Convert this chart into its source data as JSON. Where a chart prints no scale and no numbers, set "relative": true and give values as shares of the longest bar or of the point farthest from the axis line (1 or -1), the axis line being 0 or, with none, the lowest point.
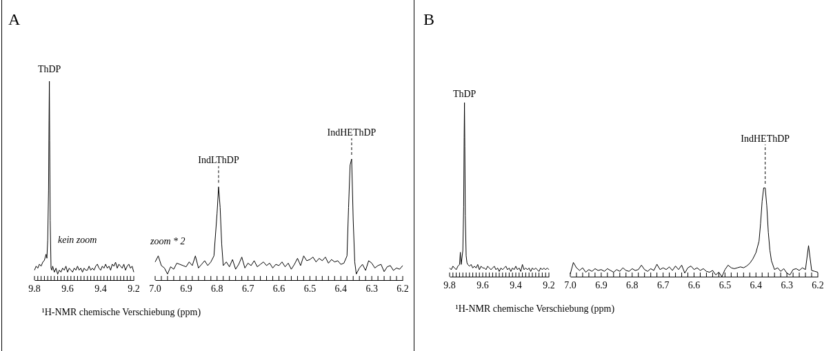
{
  "chart_data": [
    {
      "type": "line",
      "title": "A",
      "xlabel": "¹H-NMR chemische Verschiebung (ppm)",
      "relative": true,
      "xlim": [
        9.8,
        9.2
      ],
      "xticks": [
        9.8,
        {
          "value": 9.78,
          "label": null
        },
        {
          "value": 9.76,
          "label": null
        },
        {
          "value": 9.74,
          "label": null
        },
        {
          "value": 9.72,
          "label": null
        },
        {
          "value": 9.7,
          "label": null
        },
        {
          "value": 9.68,
          "label": null
        },
        {
          "value": 9.66,
          "label": null
        },
        {
          "value": 9.64,
          "label": null
        },
        {
          "value": 9.62,
          "label": null
        },
        9.6,
        {
          "value": 9.58,
          "label": null
        },
        {
          "value": 9.56,
          "label": null
        },
        {
          "value": 9.54,
          "label": null
        },
        {
          "value": 9.52,
          "label": null
        },
        {
          "value": 9.5,
          "label": null
        },
        {
          "value": 9.48,
          "label": null
        },
        {
          "value": 9.46,
          "label": null
        },
        {
          "value": 9.44,
          "label": null
        },
        {
          "value": 9.42,
          "label": null
        },
        9.4,
        {
          "value": 9.38,
          "label": null
        },
        {
          "value": 9.36,
          "label": null
        },
        {
          "value": 9.34,
          "label": null
        },
        {
          "value": 9.32,
          "label": null
        },
        {
          "value": 9.3,
          "label": null
        },
        {
          "value": 9.28,
          "label": null
        },
        {
          "value": 9.26,
          "label": null
        },
        {
          "value": 9.24,
          "label": null
        },
        {
          "value": 9.22,
          "label": null
        },
        9.2
      ],
      "x": [
        9.8,
        9.79,
        9.78,
        9.77,
        9.76,
        9.75,
        9.74,
        9.73,
        9.725,
        9.72,
        9.715,
        9.712,
        9.71,
        9.708,
        9.705,
        9.7,
        9.695,
        9.69,
        9.68,
        9.67,
        9.66,
        9.65,
        9.64,
        9.63,
        9.62,
        9.61,
        9.6,
        9.59,
        9.58,
        9.57,
        9.56,
        9.55,
        9.54,
        9.53,
        9.52,
        9.51,
        9.5,
        9.49,
        9.48,
        9.47,
        9.46,
        9.45,
        9.44,
        9.43,
        9.42,
        9.41,
        9.4,
        9.39,
        9.38,
        9.37,
        9.36,
        9.35,
        9.34,
        9.33,
        9.32,
        9.31,
        9.3,
        9.29,
        9.28,
        9.27,
        9.26,
        9.25,
        9.24,
        9.23,
        9.22,
        9.21,
        9.2
      ],
      "series": [
        {
          "color": "#000000",
          "values": [
            0.05,
            0.07,
            0.06,
            0.08,
            0.07,
            0.09,
            0.1,
            0.13,
            0.11,
            0.2,
            0.45,
            0.8,
            1,
            0.7,
            0.3,
            0.06,
            0.05,
            0.07,
            0.04,
            0.06,
            0.03,
            0.05,
            0.04,
            0.06,
            0.05,
            0.07,
            0.04,
            0.06,
            0.05,
            0.04,
            0.06,
            0.05,
            0.07,
            0.05,
            0.06,
            0.04,
            0.06,
            0.05,
            0.05,
            0.07,
            0.05,
            0.06,
            0.05,
            0.07,
            0.08,
            0.06,
            0.05,
            0.07,
            0.06,
            0.08,
            0.06,
            0.07,
            0.05,
            0.08,
            0.07,
            0.09,
            0.06,
            0.08,
            0.07,
            0.06,
            0.08,
            0.05,
            0.07,
            0.08,
            0.06,
            0.07,
            0.04
          ]
        }
      ],
      "annotations": [
        {
          "text": "ThDP",
          "x": 9.71,
          "y": 1
        },
        "kein zoom"
      ]
    },
    {
      "type": "line",
      "relative": true,
      "xlim": [
        7.0,
        6.2
      ],
      "xticks": [
        {
          "value": 7,
          "label": "7.0"
        },
        {
          "value": 6.98,
          "label": null
        },
        {
          "value": 6.96,
          "label": null
        },
        {
          "value": 6.94,
          "label": null
        },
        {
          "value": 6.92,
          "label": null
        },
        6.9,
        {
          "value": 6.88,
          "label": null
        },
        {
          "value": 6.86,
          "label": null
        },
        {
          "value": 6.84,
          "label": null
        },
        {
          "value": 6.82,
          "label": null
        },
        6.8,
        {
          "value": 6.78,
          "label": null
        },
        {
          "value": 6.76,
          "label": null
        },
        {
          "value": 6.74,
          "label": null
        },
        {
          "value": 6.72,
          "label": null
        },
        6.7,
        {
          "value": 6.68,
          "label": null
        },
        {
          "value": 6.66,
          "label": null
        },
        {
          "value": 6.64,
          "label": null
        },
        {
          "value": 6.62,
          "label": null
        },
        6.6,
        {
          "value": 6.58,
          "label": null
        },
        {
          "value": 6.56,
          "label": null
        },
        {
          "value": 6.54,
          "label": null
        },
        {
          "value": 6.52,
          "label": null
        },
        6.5,
        {
          "value": 6.48,
          "label": null
        },
        {
          "value": 6.46,
          "label": null
        },
        {
          "value": 6.44,
          "label": null
        },
        {
          "value": 6.42,
          "label": null
        },
        6.4,
        {
          "value": 6.38,
          "label": null
        },
        {
          "value": 6.36,
          "label": null
        },
        {
          "value": 6.34,
          "label": null
        },
        {
          "value": 6.32,
          "label": null
        },
        6.3,
        {
          "value": 6.28,
          "label": null
        },
        {
          "value": 6.26,
          "label": null
        },
        {
          "value": 6.24,
          "label": null
        },
        {
          "value": 6.22,
          "label": null
        },
        6.2
      ],
      "x": [
        7.0,
        6.99,
        6.98,
        6.97,
        6.96,
        6.95,
        6.94,
        6.93,
        6.92,
        6.91,
        6.9,
        6.89,
        6.88,
        6.87,
        6.86,
        6.85,
        6.84,
        6.83,
        6.82,
        6.81,
        6.8,
        6.795,
        6.79,
        6.785,
        6.78,
        6.77,
        6.76,
        6.75,
        6.74,
        6.73,
        6.72,
        6.71,
        6.7,
        6.69,
        6.68,
        6.67,
        6.66,
        6.65,
        6.64,
        6.63,
        6.62,
        6.61,
        6.6,
        6.59,
        6.58,
        6.57,
        6.56,
        6.55,
        6.54,
        6.53,
        6.52,
        6.51,
        6.5,
        6.49,
        6.48,
        6.47,
        6.46,
        6.45,
        6.44,
        6.43,
        6.42,
        6.41,
        6.4,
        6.39,
        6.38,
        6.375,
        6.37,
        6.365,
        6.36,
        6.355,
        6.35,
        6.34,
        6.33,
        6.32,
        6.31,
        6.3,
        6.29,
        6.28,
        6.27,
        6.26,
        6.25,
        6.24,
        6.23,
        6.22,
        6.21,
        6.2
      ],
      "series": [
        {
          "color": "#000000",
          "values": [
            0.15,
            0.2,
            0.12,
            0.1,
            0.05,
            0.11,
            0.09,
            0.14,
            0.13,
            0.12,
            0.11,
            0.15,
            0.12,
            0.2,
            0.1,
            0.13,
            0.16,
            0.12,
            0.15,
            0.2,
            0.55,
            0.77,
            0.6,
            0.3,
            0.12,
            0.15,
            0.11,
            0.17,
            0.09,
            0.13,
            0.19,
            0.1,
            0.14,
            0.12,
            0.16,
            0.11,
            0.13,
            0.15,
            0.12,
            0.14,
            0.1,
            0.13,
            0.12,
            0.15,
            0.11,
            0.14,
            0.09,
            0.13,
            0.18,
            0.12,
            0.2,
            0.16,
            0.17,
            0.19,
            0.15,
            0.18,
            0.16,
            0.19,
            0.14,
            0.17,
            0.15,
            0.16,
            0.13,
            0.14,
            0.2,
            0.6,
            0.95,
            1,
            0.5,
            0.15,
            0.05,
            0.1,
            0.13,
            0.08,
            0.16,
            0.14,
            0.1,
            0.12,
            0.13,
            0.07,
            0.11,
            0.12,
            0.08,
            0.1,
            0.09,
            0.12
          ]
        }
      ],
      "annotations": [
        {
          "text": "IndLThDP",
          "x": 6.795,
          "y": 0.77
        },
        {
          "text": "IndHEThDP",
          "x": 6.365,
          "y": 1
        },
        "zoom * 2"
      ]
    },
    {
      "type": "line",
      "title": "B",
      "xlabel": "¹H-NMR chemische Verschiebung (ppm)",
      "relative": true,
      "xlim": [
        9.8,
        9.2
      ],
      "xticks": [
        9.8,
        {
          "value": 9.78,
          "label": null
        },
        {
          "value": 9.76,
          "label": null
        },
        {
          "value": 9.74,
          "label": null
        },
        {
          "value": 9.72,
          "label": null
        },
        {
          "value": 9.7,
          "label": null
        },
        {
          "value": 9.68,
          "label": null
        },
        {
          "value": 9.66,
          "label": null
        },
        {
          "value": 9.64,
          "label": null
        },
        {
          "value": 9.62,
          "label": null
        },
        9.6,
        {
          "value": 9.58,
          "label": null
        },
        {
          "value": 9.56,
          "label": null
        },
        {
          "value": 9.54,
          "label": null
        },
        {
          "value": 9.52,
          "label": null
        },
        {
          "value": 9.5,
          "label": null
        },
        {
          "value": 9.48,
          "label": null
        },
        {
          "value": 9.46,
          "label": null
        },
        {
          "value": 9.44,
          "label": null
        },
        {
          "value": 9.42,
          "label": null
        },
        9.4,
        {
          "value": 9.38,
          "label": null
        },
        {
          "value": 9.36,
          "label": null
        },
        {
          "value": 9.34,
          "label": null
        },
        {
          "value": 9.32,
          "label": null
        },
        {
          "value": 9.3,
          "label": null
        },
        {
          "value": 9.28,
          "label": null
        },
        {
          "value": 9.26,
          "label": null
        },
        {
          "value": 9.24,
          "label": null
        },
        {
          "value": 9.22,
          "label": null
        },
        9.2
      ],
      "x": [
        9.8,
        9.79,
        9.78,
        9.77,
        9.76,
        9.75,
        9.74,
        9.735,
        9.73,
        9.72,
        9.715,
        9.712,
        9.71,
        9.708,
        9.705,
        9.7,
        9.695,
        9.69,
        9.68,
        9.67,
        9.66,
        9.65,
        9.64,
        9.63,
        9.62,
        9.61,
        9.6,
        9.59,
        9.58,
        9.57,
        9.56,
        9.55,
        9.54,
        9.53,
        9.52,
        9.51,
        9.5,
        9.49,
        9.48,
        9.47,
        9.46,
        9.45,
        9.44,
        9.43,
        9.42,
        9.41,
        9.4,
        9.39,
        9.38,
        9.37,
        9.36,
        9.35,
        9.34,
        9.33,
        9.32,
        9.31,
        9.3,
        9.29,
        9.28,
        9.27,
        9.26,
        9.25,
        9.24,
        9.23,
        9.22,
        9.21,
        9.2
      ],
      "series": [
        {
          "color": "#000000",
          "values": [
            0.05,
            0.04,
            0.06,
            0.05,
            0.04,
            0.06,
            0.07,
            0.14,
            0.07,
            0.15,
            0.4,
            0.8,
            1,
            0.75,
            0.35,
            0.12,
            0.08,
            0.07,
            0.06,
            0.07,
            0.05,
            0.06,
            0.05,
            0.07,
            0.04,
            0.06,
            0.05,
            0.05,
            0.04,
            0.06,
            0.05,
            0.04,
            0.05,
            0.06,
            0.04,
            0.05,
            0.03,
            0.05,
            0.04,
            0.05,
            0.06,
            0.04,
            0.05,
            0.03,
            0.05,
            0.04,
            0.06,
            0.04,
            0.05,
            0.03,
            0.07,
            0.04,
            0.05,
            0.04,
            0.05,
            0.03,
            0.05,
            0.04,
            0.05,
            0.04,
            0.03,
            0.05,
            0.04,
            0.05,
            0.04,
            0.05,
            0.04
          ]
        }
      ],
      "annotations": [
        {
          "text": "ThDP",
          "x": 9.71,
          "y": 1
        }
      ]
    },
    {
      "type": "line",
      "relative": true,
      "xlim": [
        7.0,
        6.2
      ],
      "xticks": [
        {
          "value": 7,
          "label": "7.0"
        },
        {
          "value": 6.98,
          "label": null
        },
        {
          "value": 6.96,
          "label": null
        },
        {
          "value": 6.94,
          "label": null
        },
        {
          "value": 6.92,
          "label": null
        },
        6.9,
        {
          "value": 6.88,
          "label": null
        },
        {
          "value": 6.86,
          "label": null
        },
        {
          "value": 6.84,
          "label": null
        },
        {
          "value": 6.82,
          "label": null
        },
        6.8,
        {
          "value": 6.78,
          "label": null
        },
        {
          "value": 6.76,
          "label": null
        },
        {
          "value": 6.74,
          "label": null
        },
        {
          "value": 6.72,
          "label": null
        },
        6.7,
        {
          "value": 6.68,
          "label": null
        },
        {
          "value": 6.66,
          "label": null
        },
        {
          "value": 6.64,
          "label": null
        },
        {
          "value": 6.62,
          "label": null
        },
        6.6,
        {
          "value": 6.58,
          "label": null
        },
        {
          "value": 6.56,
          "label": null
        },
        {
          "value": 6.54,
          "label": null
        },
        {
          "value": 6.52,
          "label": null
        },
        6.5,
        {
          "value": 6.48,
          "label": null
        },
        {
          "value": 6.46,
          "label": null
        },
        {
          "value": 6.44,
          "label": null
        },
        {
          "value": 6.42,
          "label": null
        },
        6.4,
        {
          "value": 6.38,
          "label": null
        },
        {
          "value": 6.36,
          "label": null
        },
        {
          "value": 6.34,
          "label": null
        },
        {
          "value": 6.32,
          "label": null
        },
        6.3,
        {
          "value": 6.28,
          "label": null
        },
        {
          "value": 6.26,
          "label": null
        },
        {
          "value": 6.24,
          "label": null
        },
        {
          "value": 6.22,
          "label": null
        },
        6.2
      ],
      "x": [
        7.0,
        6.99,
        6.98,
        6.97,
        6.96,
        6.95,
        6.94,
        6.93,
        6.92,
        6.91,
        6.9,
        6.89,
        6.88,
        6.87,
        6.86,
        6.85,
        6.84,
        6.83,
        6.82,
        6.81,
        6.8,
        6.79,
        6.78,
        6.77,
        6.76,
        6.75,
        6.74,
        6.73,
        6.72,
        6.71,
        6.7,
        6.69,
        6.68,
        6.67,
        6.66,
        6.65,
        6.64,
        6.63,
        6.62,
        6.61,
        6.6,
        6.59,
        6.58,
        6.57,
        6.56,
        6.55,
        6.54,
        6.53,
        6.52,
        6.51,
        6.5,
        6.49,
        6.48,
        6.47,
        6.46,
        6.45,
        6.44,
        6.43,
        6.42,
        6.41,
        6.4,
        6.39,
        6.385,
        6.38,
        6.375,
        6.37,
        6.365,
        6.36,
        6.355,
        6.35,
        6.34,
        6.33,
        6.32,
        6.31,
        6.3,
        6.29,
        6.28,
        6.27,
        6.26,
        6.25,
        6.24,
        6.23,
        6.22,
        6.21,
        6.2
      ],
      "series": [
        {
          "color": "#000000",
          "values": [
            0.03,
            0.16,
            0.1,
            0.07,
            0.1,
            0.05,
            0.08,
            0.06,
            0.09,
            0.07,
            0.08,
            0.06,
            0.09,
            0.07,
            0.05,
            0.08,
            0.06,
            0.1,
            0.07,
            0.06,
            0.09,
            0.07,
            0.08,
            0.13,
            0.08,
            0.06,
            0.09,
            0.07,
            0.14,
            0.08,
            0.1,
            0.08,
            0.11,
            0.07,
            0.12,
            0.08,
            0.13,
            0.04,
            0.1,
            0.12,
            0.08,
            0.1,
            0.07,
            0.09,
            0.06,
            0.05,
            0.07,
            0.02,
            0.05,
            0,
            0.08,
            0.13,
            0.1,
            0.09,
            0.1,
            0.11,
            0.1,
            0.12,
            0.15,
            0.2,
            0.27,
            0.4,
            0.6,
            0.85,
            1,
            1,
            0.8,
            0.5,
            0.3,
            0.18,
            0.08,
            0.1,
            0.06,
            0.09,
            0.04,
            0.02,
            0.08,
            0.09,
            0.07,
            0.1,
            0.08,
            0.35,
            0.07,
            0.06,
            0.05
          ]
        }
      ],
      "annotations": [
        {
          "text": "IndHEThDP",
          "x": 6.37,
          "y": 1
        }
      ]
    }
  ]
}
